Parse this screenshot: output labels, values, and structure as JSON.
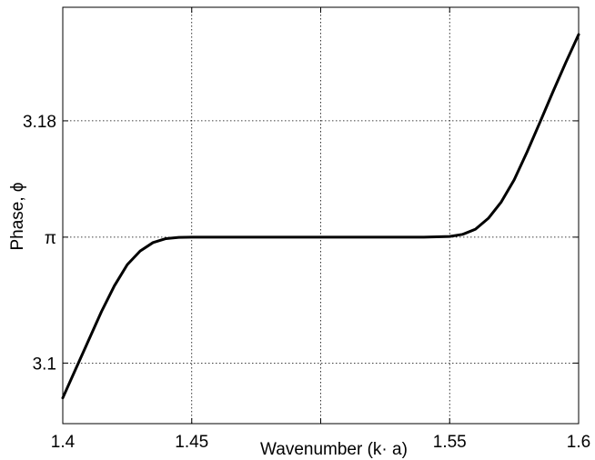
{
  "chart_data": {
    "type": "line",
    "title": "",
    "xlabel": "Wavenumber (k· a)",
    "ylabel": "Phase, ϕ",
    "xlim": [
      1.4,
      1.6
    ],
    "ylim": [
      3.08,
      3.2175
    ],
    "x_ticks": [
      {
        "value": 1.4,
        "label": "1.4"
      },
      {
        "value": 1.45,
        "label": "1.45"
      },
      {
        "value": 1.5,
        "label": ""
      },
      {
        "value": 1.55,
        "label": "1.55"
      },
      {
        "value": 1.6,
        "label": "1.6"
      }
    ],
    "y_ticks": [
      {
        "value": 3.1,
        "label": "3.1"
      },
      {
        "value": 3.14159,
        "label": "π"
      },
      {
        "value": 3.18,
        "label": "3.18"
      }
    ],
    "grid": true,
    "series": [
      {
        "color": "#000000",
        "x": [
          1.4,
          1.405,
          1.41,
          1.415,
          1.42,
          1.425,
          1.43,
          1.435,
          1.44,
          1.445,
          1.45,
          1.46,
          1.48,
          1.5,
          1.52,
          1.54,
          1.55,
          1.555,
          1.56,
          1.565,
          1.57,
          1.575,
          1.58,
          1.585,
          1.59,
          1.595,
          1.6
        ],
        "y": [
          3.0885,
          3.098,
          3.1075,
          3.117,
          3.1255,
          3.1325,
          3.137,
          3.1398,
          3.1411,
          3.1415,
          3.1416,
          3.1416,
          3.1416,
          3.1416,
          3.1416,
          3.1416,
          3.1418,
          3.1425,
          3.1442,
          3.1478,
          3.1532,
          3.1605,
          3.1697,
          3.1795,
          3.1895,
          3.1992,
          3.2085
        ]
      }
    ]
  }
}
